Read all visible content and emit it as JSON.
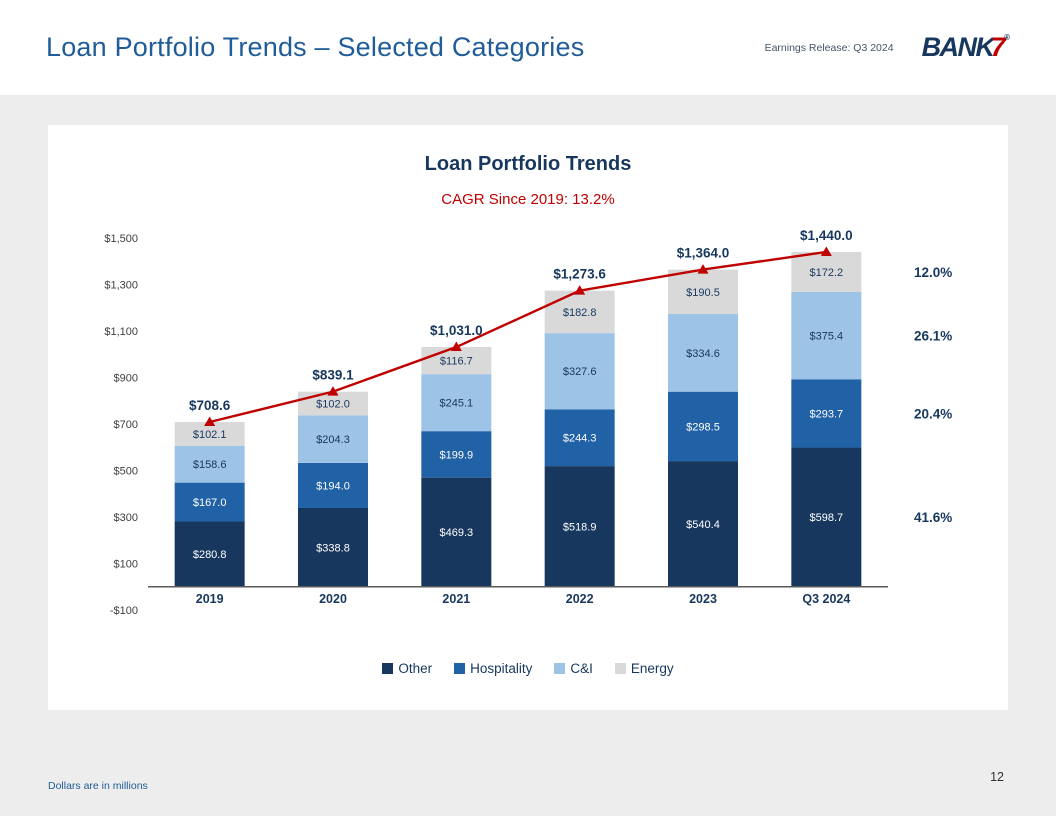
{
  "header": {
    "title": "Loan Portfolio Trends – Selected Categories",
    "release_label": "Earnings Release: Q3 2024",
    "logo": {
      "text": "BANK",
      "seven": "7",
      "reg": "®"
    }
  },
  "chart_data": {
    "type": "bar",
    "stacked": true,
    "title": "Loan Portfolio Trends",
    "subtitle": "CAGR Since 2019: 13.2%",
    "categories": [
      "2019",
      "2020",
      "2021",
      "2022",
      "2023",
      "Q3 2024"
    ],
    "series": [
      {
        "name": "Other",
        "color": "#17375E",
        "label_color": "#FFFFFF",
        "values": [
          280.8,
          338.8,
          469.3,
          518.9,
          540.4,
          598.7
        ]
      },
      {
        "name": "Hospitality",
        "color": "#2161A5",
        "label_color": "#FFFFFF",
        "values": [
          167.0,
          194.0,
          199.9,
          244.3,
          298.5,
          293.7
        ]
      },
      {
        "name": "C&I",
        "color": "#9DC3E6",
        "label_color": "#17375E",
        "values": [
          158.6,
          204.3,
          245.1,
          327.6,
          334.6,
          375.4
        ]
      },
      {
        "name": "Energy",
        "color": "#D9D9D9",
        "label_color": "#17375E",
        "values": [
          102.1,
          102.0,
          116.7,
          182.8,
          190.5,
          172.2
        ]
      }
    ],
    "totals": [
      708.6,
      839.1,
      1031.0,
      1273.6,
      1364.0,
      1440.0
    ],
    "total_labels": [
      "$708.6",
      "$839.1",
      "$1,031.0",
      "$1,273.6",
      "$1,364.0",
      "$1,440.0"
    ],
    "line_color": "#C00000",
    "ylim": [
      -100,
      1500
    ],
    "ytick_step": 200,
    "ytick_labels": [
      "-$100",
      "$100",
      "$300",
      "$500",
      "$700",
      "$900",
      "$1,100",
      "$1,300",
      "$1,500"
    ],
    "right_annotations": [
      {
        "series": "Energy",
        "label": "12.0%"
      },
      {
        "series": "C&I",
        "label": "26.1%"
      },
      {
        "series": "Hospitality",
        "label": "20.4%"
      },
      {
        "series": "Other",
        "label": "41.6%"
      }
    ],
    "legend_position": "bottom",
    "grid": false
  },
  "footer": {
    "note": "Dollars are in millions",
    "page_number": "12"
  }
}
